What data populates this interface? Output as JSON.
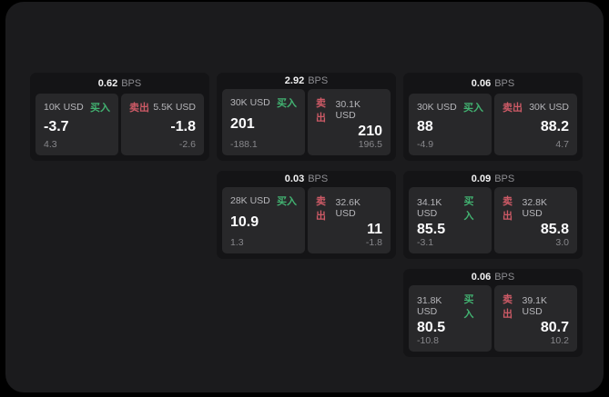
{
  "labels": {
    "unit": "BPS",
    "buy": "买入",
    "sell": "卖出"
  },
  "colors": {
    "buy": "#42b271",
    "sell": "#cd5a66",
    "panel_background": "#1b1b1d",
    "card_background": "#141416",
    "quote_background": "#28282a"
  },
  "cards": [
    {
      "row": 1,
      "col": 1,
      "bps": "0.62",
      "buy": {
        "amount": "10K USD",
        "value": "-3.7",
        "delta": "4.3"
      },
      "sell": {
        "amount": "5.5K USD",
        "value": "-1.8",
        "delta": "-2.6"
      }
    },
    {
      "row": 1,
      "col": 2,
      "bps": "2.92",
      "buy": {
        "amount": "30K USD",
        "value": "201",
        "delta": "-188.1"
      },
      "sell": {
        "amount": "30.1K USD",
        "value": "210",
        "delta": "196.5"
      }
    },
    {
      "row": 1,
      "col": 3,
      "bps": "0.06",
      "buy": {
        "amount": "30K USD",
        "value": "88",
        "delta": "-4.9"
      },
      "sell": {
        "amount": "30K USD",
        "value": "88.2",
        "delta": "4.7"
      }
    },
    {
      "row": 2,
      "col": 2,
      "bps": "0.03",
      "buy": {
        "amount": "28K USD",
        "value": "10.9",
        "delta": "1.3"
      },
      "sell": {
        "amount": "32.6K USD",
        "value": "11",
        "delta": "-1.8"
      }
    },
    {
      "row": 2,
      "col": 3,
      "bps": "0.09",
      "buy": {
        "amount": "34.1K USD",
        "value": "85.5",
        "delta": "-3.1"
      },
      "sell": {
        "amount": "32.8K USD",
        "value": "85.8",
        "delta": "3.0"
      }
    },
    {
      "row": 3,
      "col": 3,
      "bps": "0.06",
      "buy": {
        "amount": "31.8K USD",
        "value": "80.5",
        "delta": "-10.8"
      },
      "sell": {
        "amount": "39.1K USD",
        "value": "80.7",
        "delta": "10.2"
      }
    }
  ]
}
